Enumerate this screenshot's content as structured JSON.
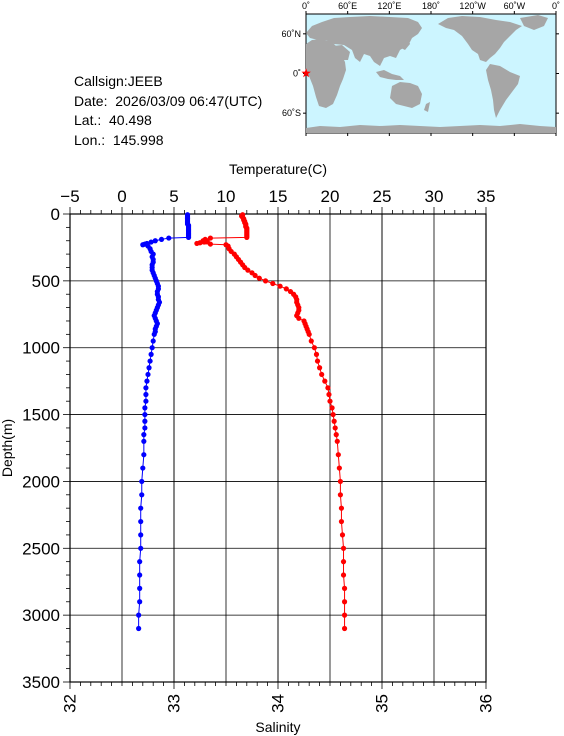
{
  "info": {
    "callsign": "Callsign:JEEB",
    "date": "Date:  2026/03/09 06:47(UTC)",
    "lat": "Lat.:  40.498",
    "lon": "Lon.:  145.998"
  },
  "map": {
    "lon_labels": [
      "0˚",
      "60˚E",
      "120˚E",
      "180˚",
      "120˚W",
      "60˚W",
      "0˚"
    ],
    "lat_labels": [
      "60˚N",
      "0˚",
      "60˚S"
    ],
    "ocean_color": "#ccf5ff",
    "land_color": "#a6a6a6",
    "marker_color": "#ff0000"
  },
  "chart_data": {
    "type": "scatter",
    "depth_label": "Depth(m)",
    "temperature_label": "Temperature(C)",
    "salinity_label": "Salinity",
    "depth_range": [
      0,
      3500
    ],
    "depth_ticks": [
      0,
      500,
      1000,
      1500,
      2000,
      2500,
      3000,
      3500
    ],
    "temperature_range": [
      -5,
      35
    ],
    "temperature_ticks": [
      -5,
      0,
      5,
      10,
      15,
      20,
      25,
      30,
      35
    ],
    "salinity_range": [
      32,
      36
    ],
    "salinity_ticks": [
      32,
      33,
      34,
      35,
      36
    ],
    "grid": true,
    "series": [
      {
        "name": "Temperature(C)",
        "axis": "temperature",
        "color": "#ff0000",
        "points": [
          [
            11.6,
            5
          ],
          [
            11.5,
            15
          ],
          [
            11.6,
            25
          ],
          [
            11.7,
            35
          ],
          [
            11.7,
            45
          ],
          [
            11.8,
            55
          ],
          [
            11.8,
            65
          ],
          [
            11.9,
            75
          ],
          [
            11.9,
            85
          ],
          [
            11.9,
            95
          ],
          [
            12.0,
            105
          ],
          [
            12.0,
            115
          ],
          [
            12.0,
            125
          ],
          [
            12.0,
            135
          ],
          [
            12.0,
            145
          ],
          [
            12.0,
            155
          ],
          [
            12.0,
            165
          ],
          [
            12.0,
            175
          ],
          [
            8.5,
            180
          ],
          [
            8.0,
            190
          ],
          [
            7.8,
            200
          ],
          [
            8.2,
            205
          ],
          [
            7.9,
            210
          ],
          [
            7.5,
            215
          ],
          [
            7.2,
            220
          ],
          [
            8.5,
            225
          ],
          [
            10.0,
            230
          ],
          [
            10.2,
            240
          ],
          [
            10.3,
            260
          ],
          [
            10.5,
            280
          ],
          [
            10.8,
            300
          ],
          [
            11.0,
            320
          ],
          [
            11.2,
            340
          ],
          [
            11.4,
            360
          ],
          [
            11.6,
            380
          ],
          [
            11.8,
            400
          ],
          [
            12.1,
            420
          ],
          [
            12.5,
            440
          ],
          [
            12.8,
            460
          ],
          [
            13.2,
            480
          ],
          [
            13.8,
            500
          ],
          [
            14.5,
            520
          ],
          [
            15.2,
            540
          ],
          [
            15.8,
            560
          ],
          [
            16.2,
            580
          ],
          [
            16.5,
            600
          ],
          [
            16.7,
            620
          ],
          [
            16.8,
            640
          ],
          [
            16.8,
            660
          ],
          [
            16.9,
            680
          ],
          [
            17.0,
            700
          ],
          [
            17.0,
            720
          ],
          [
            16.9,
            740
          ],
          [
            16.8,
            760
          ],
          [
            17.0,
            780
          ],
          [
            17.5,
            800
          ],
          [
            17.6,
            820
          ],
          [
            17.7,
            840
          ],
          [
            17.8,
            860
          ],
          [
            17.9,
            880
          ],
          [
            18.0,
            900
          ],
          [
            18.2,
            950
          ],
          [
            18.5,
            1000
          ],
          [
            18.7,
            1050
          ],
          [
            18.8,
            1100
          ],
          [
            19.0,
            1150
          ],
          [
            19.2,
            1200
          ],
          [
            19.5,
            1250
          ],
          [
            19.8,
            1300
          ],
          [
            19.9,
            1350
          ],
          [
            20.0,
            1400
          ],
          [
            20.2,
            1450
          ],
          [
            20.3,
            1500
          ],
          [
            20.4,
            1550
          ],
          [
            20.5,
            1600
          ],
          [
            20.6,
            1650
          ],
          [
            20.7,
            1700
          ],
          [
            20.8,
            1800
          ],
          [
            20.9,
            1900
          ],
          [
            21.0,
            2000
          ],
          [
            21.0,
            2100
          ],
          [
            21.1,
            2200
          ],
          [
            21.1,
            2300
          ],
          [
            21.2,
            2400
          ],
          [
            21.3,
            2500
          ],
          [
            21.3,
            2600
          ],
          [
            21.3,
            2700
          ],
          [
            21.4,
            2800
          ],
          [
            21.4,
            2900
          ],
          [
            21.4,
            3000
          ],
          [
            21.4,
            3100
          ]
        ]
      },
      {
        "name": "Salinity",
        "axis": "salinity",
        "color": "#0000ff",
        "points": [
          [
            33.13,
            5
          ],
          [
            33.13,
            15
          ],
          [
            33.13,
            25
          ],
          [
            33.13,
            35
          ],
          [
            33.13,
            45
          ],
          [
            33.13,
            55
          ],
          [
            33.13,
            65
          ],
          [
            33.13,
            75
          ],
          [
            33.14,
            85
          ],
          [
            33.14,
            95
          ],
          [
            33.14,
            105
          ],
          [
            33.14,
            115
          ],
          [
            33.14,
            125
          ],
          [
            33.14,
            135
          ],
          [
            33.14,
            145
          ],
          [
            33.14,
            155
          ],
          [
            33.14,
            165
          ],
          [
            33.14,
            175
          ],
          [
            32.95,
            180
          ],
          [
            32.88,
            190
          ],
          [
            32.82,
            200
          ],
          [
            32.78,
            210
          ],
          [
            32.74,
            220
          ],
          [
            32.72,
            225
          ],
          [
            32.7,
            230
          ],
          [
            32.75,
            240
          ],
          [
            32.77,
            260
          ],
          [
            32.78,
            280
          ],
          [
            32.8,
            300
          ],
          [
            32.79,
            320
          ],
          [
            32.8,
            340
          ],
          [
            32.8,
            360
          ],
          [
            32.79,
            380
          ],
          [
            32.79,
            400
          ],
          [
            32.79,
            420
          ],
          [
            32.8,
            440
          ],
          [
            32.81,
            460
          ],
          [
            32.82,
            480
          ],
          [
            32.83,
            500
          ],
          [
            32.84,
            520
          ],
          [
            32.85,
            540
          ],
          [
            32.85,
            560
          ],
          [
            32.84,
            580
          ],
          [
            32.84,
            600
          ],
          [
            32.85,
            620
          ],
          [
            32.85,
            640
          ],
          [
            32.86,
            660
          ],
          [
            32.85,
            680
          ],
          [
            32.84,
            700
          ],
          [
            32.83,
            720
          ],
          [
            32.82,
            740
          ],
          [
            32.81,
            760
          ],
          [
            32.82,
            780
          ],
          [
            32.83,
            800
          ],
          [
            32.84,
            820
          ],
          [
            32.83,
            840
          ],
          [
            32.82,
            860
          ],
          [
            32.82,
            880
          ],
          [
            32.81,
            900
          ],
          [
            32.8,
            950
          ],
          [
            32.79,
            1000
          ],
          [
            32.78,
            1050
          ],
          [
            32.77,
            1100
          ],
          [
            32.76,
            1150
          ],
          [
            32.75,
            1200
          ],
          [
            32.74,
            1250
          ],
          [
            32.73,
            1300
          ],
          [
            32.73,
            1350
          ],
          [
            32.73,
            1400
          ],
          [
            32.72,
            1450
          ],
          [
            32.72,
            1500
          ],
          [
            32.72,
            1550
          ],
          [
            32.72,
            1600
          ],
          [
            32.71,
            1650
          ],
          [
            32.71,
            1700
          ],
          [
            32.71,
            1800
          ],
          [
            32.7,
            1900
          ],
          [
            32.69,
            2000
          ],
          [
            32.69,
            2100
          ],
          [
            32.68,
            2200
          ],
          [
            32.68,
            2300
          ],
          [
            32.68,
            2400
          ],
          [
            32.68,
            2500
          ],
          [
            32.67,
            2600
          ],
          [
            32.67,
            2700
          ],
          [
            32.67,
            2800
          ],
          [
            32.67,
            2900
          ],
          [
            32.66,
            3000
          ],
          [
            32.66,
            3100
          ]
        ]
      }
    ]
  }
}
